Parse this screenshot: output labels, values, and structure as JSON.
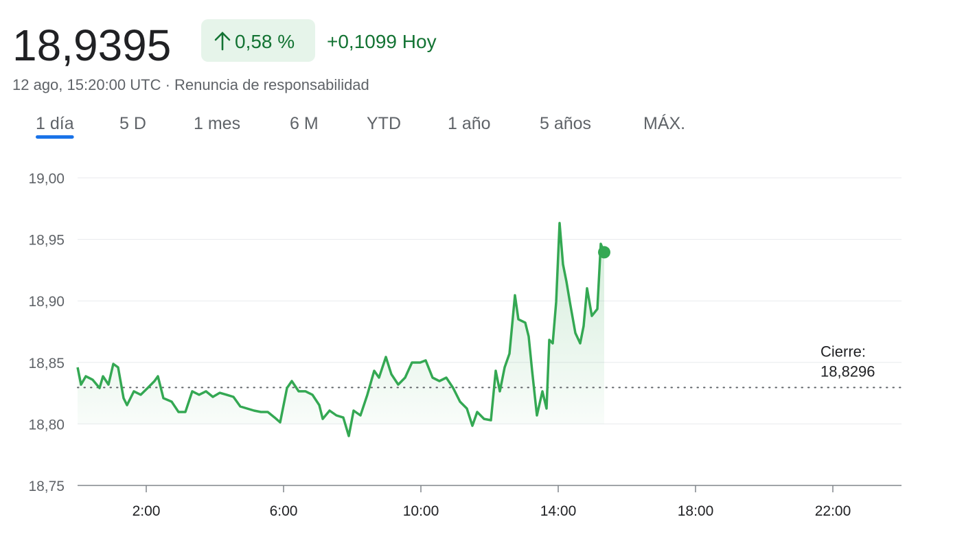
{
  "header": {
    "price": "18,9395",
    "change_pct": "0,58 %",
    "change_abs": "+0,1099 Hoy",
    "timestamp": "12 ago, 15:20:00 UTC · Renuncia de responsabilidad"
  },
  "tabs": [
    "1 día",
    "5 D",
    "1 mes",
    "6 M",
    "YTD",
    "1 año",
    "5 años",
    "MÁX."
  ],
  "active_tab": 0,
  "chart_data": {
    "type": "line",
    "color": "#34a853",
    "x": [
      0,
      0.1,
      0.24,
      0.44,
      0.64,
      0.74,
      0.9,
      1.04,
      1.18,
      1.34,
      1.44,
      1.64,
      1.84,
      2.04,
      2.24,
      2.34,
      2.5,
      2.74,
      2.94,
      3.14,
      3.34,
      3.54,
      3.74,
      3.94,
      4.14,
      4.34,
      4.54,
      4.74,
      4.94,
      5.14,
      5.34,
      5.54,
      5.74,
      5.9,
      6.1,
      6.24,
      6.44,
      6.64,
      6.84,
      7.04,
      7.14,
      7.34,
      7.54,
      7.74,
      7.9,
      8.04,
      8.24,
      8.44,
      8.64,
      8.78,
      8.98,
      9.14,
      9.34,
      9.54,
      9.74,
      9.98,
      10.14,
      10.34,
      10.54,
      10.74,
      10.94,
      11.14,
      11.34,
      11.5,
      11.64,
      11.84,
      12.04,
      12.18,
      12.3,
      12.44,
      12.58,
      12.74,
      12.84,
      13.04,
      13.14,
      13.24,
      13.38,
      13.54,
      13.66,
      13.74,
      13.84,
      13.94,
      14.04,
      14.14,
      14.24,
      14.34,
      14.5,
      14.64,
      14.74,
      14.84,
      14.98,
      15.14,
      15.24,
      15.34
    ],
    "values": [
      18.846,
      18.832,
      18.8387,
      18.8359,
      18.8292,
      18.8387,
      18.832,
      18.8488,
      18.846,
      18.8209,
      18.8153,
      18.8265,
      18.8237,
      18.8292,
      18.8348,
      18.8387,
      18.8209,
      18.8181,
      18.8097,
      18.8097,
      18.8265,
      18.8237,
      18.8265,
      18.822,
      18.8253,
      18.8237,
      18.822,
      18.8142,
      18.8125,
      18.8108,
      18.8097,
      18.8097,
      18.8052,
      18.8013,
      18.8292,
      18.8348,
      18.8265,
      18.8265,
      18.8237,
      18.8153,
      18.8041,
      18.8108,
      18.8069,
      18.8052,
      18.7902,
      18.8108,
      18.8069,
      18.8237,
      18.8432,
      18.8376,
      18.8544,
      18.8404,
      18.832,
      18.8376,
      18.8499,
      18.8499,
      18.8516,
      18.8376,
      18.8348,
      18.8376,
      18.8292,
      18.8181,
      18.8125,
      18.7985,
      18.8097,
      18.8041,
      18.803,
      18.8432,
      18.8265,
      18.846,
      18.8571,
      18.9046,
      18.885,
      18.8823,
      18.8711,
      18.8432,
      18.8069,
      18.8265,
      18.8125,
      18.8683,
      18.8655,
      18.899,
      18.9632,
      18.9297,
      18.9157,
      18.899,
      18.8739,
      18.8655,
      18.8795,
      18.9102,
      18.8878,
      18.8934,
      18.9464,
      18.9395
    ],
    "xlim": [
      0,
      24
    ],
    "xticks": [
      {
        "value": 2,
        "label": "2:00"
      },
      {
        "value": 6,
        "label": "6:00"
      },
      {
        "value": 10,
        "label": "10:00"
      },
      {
        "value": 14,
        "label": "14:00"
      },
      {
        "value": 18,
        "label": "18:00"
      },
      {
        "value": 22,
        "label": "22:00"
      }
    ],
    "ylim": [
      18.75,
      19.0
    ],
    "yticks": [
      {
        "value": 18.75,
        "label": "18,75"
      },
      {
        "value": 18.8,
        "label": "18,80"
      },
      {
        "value": 18.85,
        "label": "18,85"
      },
      {
        "value": 18.9,
        "label": "18,90"
      },
      {
        "value": 18.95,
        "label": "18,95"
      },
      {
        "value": 19.0,
        "label": "19,00"
      }
    ],
    "grid": true,
    "reference_line": {
      "label": "Cierre:",
      "value": 18.8296,
      "value_label": "18,8296"
    }
  }
}
